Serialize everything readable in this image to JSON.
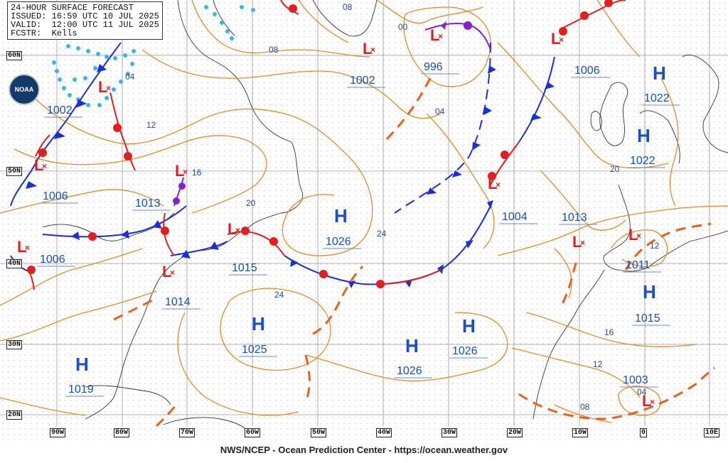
{
  "header": {
    "line1": "24-HOUR SURFACE FORECAST",
    "line2": "ISSUED: 16:59 UTC 10 JUL 2025",
    "line3": "VALID:  12:00 UTC 11 JUL 2025",
    "line4": "FCSTR:  Kells"
  },
  "footer": "NWS/NCEP - Ocean Prediction Center - https://ocean.weather.gov",
  "logo_text": "NOAA",
  "lon_labels": [
    "90W",
    "80W",
    "70W",
    "60W",
    "50W",
    "40W",
    "30W",
    "20W",
    "10W",
    "0",
    "10E"
  ],
  "lat_labels": [
    "60N",
    "50N",
    "40N",
    "30N",
    "20N"
  ],
  "pressure_labels": [
    "1002",
    "996",
    "1006",
    "1022",
    "1022",
    "1002",
    "1006",
    "1013",
    "1026",
    "1004",
    "1013",
    "1011",
    "1006",
    "1015",
    "1014",
    "1015",
    "1025",
    "1026",
    "1026",
    "1019",
    "1003"
  ],
  "isobar_labels": [
    "08",
    "00",
    "08",
    "04",
    "04",
    "12",
    "16",
    "20",
    "24",
    "24",
    "20",
    "12",
    "16",
    "12",
    "08",
    "04"
  ],
  "highs": [
    "H",
    "H",
    "H",
    "H",
    "H",
    "H",
    "H",
    "H"
  ],
  "lows": [
    "L",
    "L",
    "L",
    "L",
    "L",
    "L",
    "L",
    "L",
    "L",
    "L",
    "L",
    "L",
    "L"
  ],
  "colors": {
    "isobar": "#e08a2a",
    "cold_front": "#1a2fd6",
    "warm_front": "#e41d1d",
    "occluded": "#8a1fc7",
    "trough": "#e8601a",
    "high": "#1c4fbf",
    "low": "#e41d1d",
    "ice": "#33b5f0",
    "label": "#1a4fa8"
  }
}
